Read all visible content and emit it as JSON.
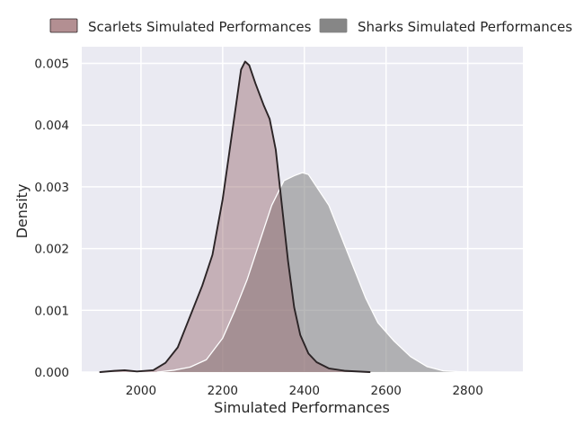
{
  "chart_data": {
    "type": "area",
    "kind": "kde",
    "xlabel": "Simulated Performances",
    "ylabel": "Density",
    "xlim": [
      1855,
      2935
    ],
    "ylim": [
      0,
      0.00527
    ],
    "xticks": [
      2000,
      2200,
      2400,
      2600,
      2800
    ],
    "yticks": [
      0.0,
      0.001,
      0.002,
      0.003,
      0.004,
      0.005
    ],
    "xtick_labels": [
      "2000",
      "2200",
      "2400",
      "2600",
      "2800"
    ],
    "ytick_labels": [
      "0.000",
      "0.001",
      "0.002",
      "0.003",
      "0.004",
      "0.005"
    ],
    "grid": true,
    "legend_placement": "top-center",
    "background": "#EAEAF2",
    "series": [
      {
        "name": "Scarlets Simulated Performances",
        "fill_color": "#9A6A6E",
        "line_color": "#2B2426",
        "points": [
          [
            1900,
            0.0
          ],
          [
            1935,
            2e-05
          ],
          [
            1960,
            3e-05
          ],
          [
            1990,
            1e-05
          ],
          [
            2030,
            3e-05
          ],
          [
            2060,
            0.00015
          ],
          [
            2090,
            0.0004
          ],
          [
            2120,
            0.0009
          ],
          [
            2150,
            0.0014
          ],
          [
            2175,
            0.0019
          ],
          [
            2200,
            0.0028
          ],
          [
            2215,
            0.0035
          ],
          [
            2230,
            0.0042
          ],
          [
            2245,
            0.0049
          ],
          [
            2255,
            0.00503
          ],
          [
            2265,
            0.00497
          ],
          [
            2280,
            0.00468
          ],
          [
            2300,
            0.00433
          ],
          [
            2315,
            0.0041
          ],
          [
            2330,
            0.0036
          ],
          [
            2345,
            0.0027
          ],
          [
            2360,
            0.0018
          ],
          [
            2375,
            0.00105
          ],
          [
            2390,
            0.0006
          ],
          [
            2410,
            0.0003
          ],
          [
            2430,
            0.00016
          ],
          [
            2460,
            6e-05
          ],
          [
            2500,
            2e-05
          ],
          [
            2560,
            0.0
          ]
        ]
      },
      {
        "name": "Sharks Simulated Performances",
        "fill_color": "#808080",
        "line_color": "#FFFFFF",
        "points": [
          [
            2040,
            0.0
          ],
          [
            2080,
            3e-05
          ],
          [
            2120,
            8e-05
          ],
          [
            2160,
            0.0002
          ],
          [
            2200,
            0.00055
          ],
          [
            2230,
            0.001
          ],
          [
            2260,
            0.0015
          ],
          [
            2290,
            0.0021
          ],
          [
            2320,
            0.0027
          ],
          [
            2350,
            0.0031
          ],
          [
            2375,
            0.00318
          ],
          [
            2395,
            0.00323
          ],
          [
            2410,
            0.0032
          ],
          [
            2430,
            0.003
          ],
          [
            2460,
            0.0027
          ],
          [
            2490,
            0.0022
          ],
          [
            2520,
            0.0017
          ],
          [
            2550,
            0.0012
          ],
          [
            2580,
            0.0008
          ],
          [
            2620,
            0.0005
          ],
          [
            2660,
            0.00025
          ],
          [
            2700,
            9e-05
          ],
          [
            2740,
            2e-05
          ],
          [
            2800,
            0.0
          ],
          [
            2880,
            0.0
          ]
        ]
      }
    ]
  }
}
